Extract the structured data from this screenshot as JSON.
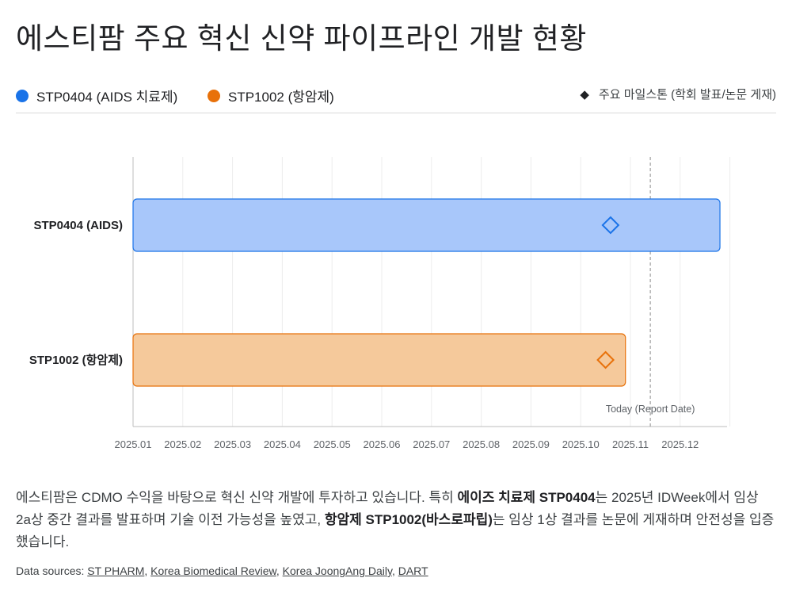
{
  "title": "에스티팜 주요 혁신 신약 파이프라인 개발 현황",
  "legend": {
    "items": [
      {
        "label": "STP0404 (AIDS 치료제)",
        "color": "#1a73e8"
      },
      {
        "label": "STP1002 (항암제)",
        "color": "#e8710a"
      }
    ],
    "milestone_label": "주요 마일스톤 (학회 발표/논문 게재)",
    "milestone_icon": "diamond-icon"
  },
  "chart_data": {
    "type": "gantt",
    "x_ticks": [
      "2025.01",
      "2025.02",
      "2025.03",
      "2025.04",
      "2025.05",
      "2025.06",
      "2025.07",
      "2025.08",
      "2025.09",
      "2025.10",
      "2025.11",
      "2025.12"
    ],
    "x_range": [
      "2025.01",
      "2026.01"
    ],
    "grid": true,
    "series": [
      {
        "name": "STP0404 (AIDS)",
        "start": "2025.01",
        "end": "2025.12 end",
        "start_month": 1.0,
        "end_month": 12.8,
        "milestone_month": 10.6,
        "fill": "#a8c7fa",
        "stroke": "#1a73e8"
      },
      {
        "name": "STP1002 (항암제)",
        "start": "2025.01",
        "end": "2025.10 end",
        "start_month": 1.0,
        "end_month": 10.9,
        "milestone_month": 10.5,
        "fill": "#f5c99b",
        "stroke": "#e8710a"
      }
    ],
    "today": {
      "month": 11.4,
      "label": "Today (Report Date)"
    }
  },
  "description": {
    "p1": "에스티팜은 CDMO 수익을 바탕으로 혁신 신약 개발에 투자하고 있습니다. 특히 ",
    "b1": "에이즈 치료제 STP0404",
    "p2": "는 2025년 IDWeek에서 임상 2a상 중간 결과를 발표하며 기술 이전 가능성을 높였고, ",
    "b2": "항암제 STP1002(바스로파립)",
    "p3": "는 임상 1상 결과를 논문에 게재하며 안전성을 입증했습니다."
  },
  "sources": {
    "prefix": "Data sources: ",
    "links": [
      "ST PHARM",
      "Korea Biomedical Review",
      "Korea JoongAng Daily",
      "DART"
    ]
  }
}
